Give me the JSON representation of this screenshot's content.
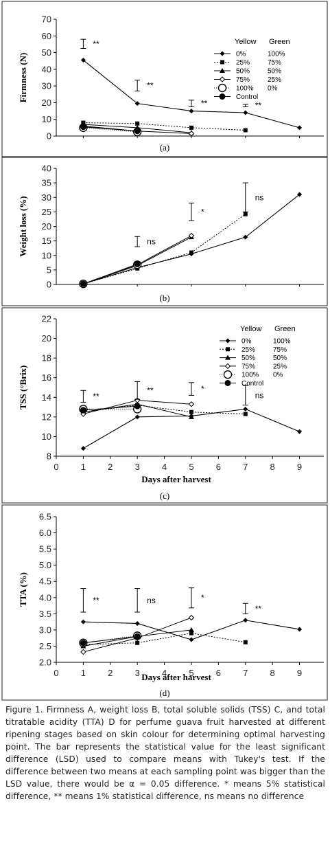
{
  "caption": "Figure 1. Firmness A, weight loss B, total soluble solids (TSS) C, and total titratable acidity (TTA) D for perfume guava fruit harvested at different ripening stages based on skin colour for determining optimal harvesting point. The bar represents the statistical value for the least significant difference (LSD) used to compare means with Tukey's test. If the difference between two means at each sampling point was bigger than the LSD value, there would be α = 0.05 difference. * means 5% statistical difference, ** means 1% statistical difference, ns means no difference",
  "legend": {
    "header_yellow": "Yellow",
    "header_green": "Green",
    "entries": [
      {
        "yellow": "0%",
        "green": "100%"
      },
      {
        "yellow": "25%",
        "green": "75%"
      },
      {
        "yellow": "50%",
        "green": "50%"
      },
      {
        "yellow": "75%",
        "green": "25%"
      },
      {
        "yellow": "100%",
        "green": "0%"
      },
      {
        "yellow": "Control",
        "green": ""
      }
    ]
  },
  "chart_data": [
    {
      "type": "line",
      "panel_label": "(a)",
      "ylabel": "Firmness (N)",
      "xlabel": "",
      "ylim": [
        0,
        70
      ],
      "yticks": [
        "0",
        "10",
        "20",
        "30",
        "40",
        "50",
        "60",
        "70"
      ],
      "ytick_values": [
        0,
        10,
        20,
        30,
        40,
        50,
        60,
        70
      ],
      "xlim": [
        0,
        9.9
      ],
      "show_xticks": false,
      "show_legend": true,
      "series": [
        {
          "x": [
            1,
            3,
            5,
            7,
            9
          ],
          "y": [
            45.5,
            19.5,
            15,
            14,
            5
          ],
          "marker": "diamond"
        },
        {
          "x": [
            1,
            3,
            5,
            7
          ],
          "y": [
            8,
            7.5,
            5,
            3.5
          ],
          "marker": "square"
        },
        {
          "x": [
            1,
            3,
            5
          ],
          "y": [
            7,
            5,
            2
          ],
          "marker": "triangle"
        },
        {
          "x": [
            1,
            3,
            5
          ],
          "y": [
            6,
            3,
            1.5
          ],
          "marker": "open-diamond"
        },
        {
          "x": [
            1,
            3
          ],
          "y": [
            5,
            2.5
          ],
          "marker": "open-circle"
        },
        {
          "x": [
            1,
            3
          ],
          "y": [
            5.5,
            3
          ],
          "marker": "filled-circle"
        }
      ],
      "lsd": [
        {
          "x": 1,
          "low": 52.5,
          "high": 58,
          "label": "**"
        },
        {
          "x": 3,
          "low": 27,
          "high": 33.5,
          "label": "**"
        },
        {
          "x": 5,
          "low": 17.5,
          "high": 21.5,
          "label": "**"
        },
        {
          "x": 7,
          "low": 17.5,
          "high": 19,
          "label": "**"
        }
      ]
    },
    {
      "type": "line",
      "panel_label": "(b)",
      "ylabel": "Weight loss (%)",
      "xlabel": "",
      "ylim": [
        0,
        40
      ],
      "yticks": [
        "0",
        "5",
        "10",
        "15",
        "20",
        "25",
        "30",
        "35",
        "40"
      ],
      "ytick_values": [
        0,
        5,
        10,
        15,
        20,
        25,
        30,
        35,
        40
      ],
      "xlim": [
        0,
        9.9
      ],
      "show_xticks": false,
      "show_legend": false,
      "series": [
        {
          "x": [
            1,
            3,
            5,
            7,
            9
          ],
          "y": [
            0.2,
            5.8,
            10.5,
            16.3,
            31
          ],
          "marker": "diamond"
        },
        {
          "x": [
            1,
            3,
            5,
            7
          ],
          "y": [
            0.2,
            5.5,
            11,
            24.2
          ],
          "marker": "square"
        },
        {
          "x": [
            1,
            3,
            5
          ],
          "y": [
            0.2,
            6.5,
            16.3
          ],
          "marker": "triangle"
        },
        {
          "x": [
            1,
            3,
            5
          ],
          "y": [
            0.2,
            6.8,
            16.8
          ],
          "marker": "open-diamond"
        },
        {
          "x": [
            1,
            3
          ],
          "y": [
            0.2,
            6.8
          ],
          "marker": "open-circle"
        },
        {
          "x": [
            1,
            3
          ],
          "y": [
            0.2,
            7
          ],
          "marker": "filled-circle"
        }
      ],
      "lsd": [
        {
          "x": 3,
          "low": 13,
          "high": 16.5,
          "label": "ns"
        },
        {
          "x": 5,
          "low": 22,
          "high": 28,
          "label": "*"
        },
        {
          "x": 7,
          "low": 25,
          "high": 35,
          "label": "ns"
        }
      ]
    },
    {
      "type": "line",
      "panel_label": "(c)",
      "ylabel": "TSS (°Brix)",
      "xlabel": "Days after harvest",
      "ylim": [
        8,
        22
      ],
      "yticks": [
        "8",
        "10",
        "12",
        "14",
        "16",
        "18",
        "20",
        "22"
      ],
      "ytick_values": [
        8,
        10,
        12,
        14,
        16,
        18,
        20,
        22
      ],
      "xlim": [
        0,
        9.9
      ],
      "show_xticks": true,
      "xticks": [
        "0",
        "1",
        "2",
        "3",
        "4",
        "5",
        "6",
        "7",
        "8",
        "9"
      ],
      "xtick_values": [
        0,
        1,
        2,
        3,
        4,
        5,
        6,
        7,
        8,
        9
      ],
      "show_legend": true,
      "series": [
        {
          "x": [
            1,
            3,
            5,
            7,
            9
          ],
          "y": [
            8.8,
            12,
            12.1,
            12.8,
            10.5
          ],
          "marker": "diamond"
        },
        {
          "x": [
            1,
            3,
            5,
            7
          ],
          "y": [
            12.5,
            13.2,
            12.5,
            12.3
          ],
          "marker": "square"
        },
        {
          "x": [
            1,
            3,
            5
          ],
          "y": [
            12.5,
            13.3,
            12
          ],
          "marker": "triangle"
        },
        {
          "x": [
            1,
            3,
            5
          ],
          "y": [
            12.3,
            13.7,
            13.3
          ],
          "marker": "open-diamond"
        },
        {
          "x": [
            1,
            3
          ],
          "y": [
            12.8,
            12.8
          ],
          "marker": "open-circle"
        },
        {
          "x": [
            1,
            3
          ],
          "y": [
            12.7,
            13.1
          ],
          "marker": "filled-circle"
        }
      ],
      "lsd": [
        {
          "x": 1,
          "low": 13.5,
          "high": 14.7,
          "label": "**"
        },
        {
          "x": 3,
          "low": 13.8,
          "high": 15.6,
          "label": "**"
        },
        {
          "x": 5,
          "low": 14.2,
          "high": 15.5,
          "label": "*"
        },
        {
          "x": 7,
          "low": 13.2,
          "high": 15.2,
          "label": "ns"
        }
      ]
    },
    {
      "type": "line",
      "panel_label": "(d)",
      "ylabel": "TTA (%)",
      "xlabel": "Days after harvest",
      "ylim": [
        2,
        6.5
      ],
      "yticks": [
        "2.0",
        "2.5",
        "3.0",
        "3.5",
        "4.0",
        "4.5",
        "5.0",
        "5.5",
        "6.0",
        "6.5"
      ],
      "ytick_values": [
        2,
        2.5,
        3,
        3.5,
        4,
        4.5,
        5,
        5.5,
        6,
        6.5
      ],
      "xlim": [
        0,
        9.9
      ],
      "show_xticks": true,
      "xticks": [
        "0",
        "1",
        "2",
        "3",
        "4",
        "5",
        "6",
        "7",
        "8",
        "9"
      ],
      "xtick_values": [
        0,
        1,
        2,
        3,
        4,
        5,
        6,
        7,
        8,
        9
      ],
      "show_legend": false,
      "series": [
        {
          "x": [
            1,
            3,
            5,
            7,
            9
          ],
          "y": [
            3.25,
            3.2,
            2.7,
            3.3,
            3.02
          ],
          "marker": "diamond"
        },
        {
          "x": [
            1,
            3,
            5,
            7
          ],
          "y": [
            2.55,
            2.6,
            2.9,
            2.62
          ],
          "marker": "square"
        },
        {
          "x": [
            1,
            3,
            5
          ],
          "y": [
            2.5,
            2.8,
            3.0
          ],
          "marker": "triangle"
        },
        {
          "x": [
            1,
            3,
            5
          ],
          "y": [
            2.32,
            2.75,
            3.38
          ],
          "marker": "open-diamond"
        },
        {
          "x": [
            1,
            3
          ],
          "y": [
            2.6,
            2.82
          ],
          "marker": "open-circle"
        },
        {
          "x": [
            1,
            3
          ],
          "y": [
            2.6,
            2.8
          ],
          "marker": "filled-circle"
        }
      ],
      "lsd": [
        {
          "x": 1,
          "low": 3.55,
          "high": 4.28,
          "label": "**"
        },
        {
          "x": 3,
          "low": 3.55,
          "high": 4.28,
          "label": "ns"
        },
        {
          "x": 5,
          "low": 3.68,
          "high": 4.3,
          "label": "*"
        },
        {
          "x": 7,
          "low": 3.5,
          "high": 3.82,
          "label": "**"
        }
      ]
    }
  ]
}
